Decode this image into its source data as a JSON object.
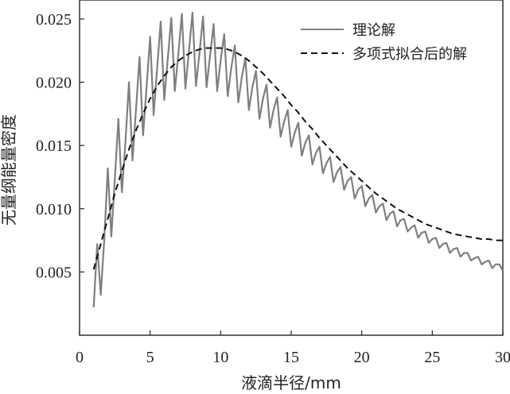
{
  "chart_data": {
    "type": "line",
    "xlabel": "液滴半径/mm",
    "ylabel": "无量纲能量密度",
    "xlim": [
      0,
      30
    ],
    "ylim": [
      0,
      0.0265
    ],
    "x_ticks": [
      0,
      5,
      10,
      15,
      20,
      25,
      30
    ],
    "x_tick_labels": [
      "0",
      "5",
      "10",
      "15",
      "20",
      "25",
      "30"
    ],
    "y_ticks": [
      0.005,
      0.01,
      0.015,
      0.02,
      0.025
    ],
    "y_tick_labels": [
      "0.005",
      "0.010",
      "0.015",
      "0.020",
      "0.025"
    ],
    "legend_position": "top-right",
    "grid": false,
    "series": [
      {
        "name": "理论解",
        "style": "solid",
        "color": "#7f7f7f",
        "x": [
          1.0,
          1.25,
          1.5,
          1.75,
          2.0,
          2.25,
          2.5,
          2.75,
          3.0,
          3.25,
          3.5,
          3.75,
          4.0,
          4.25,
          4.5,
          4.75,
          5.0,
          5.25,
          5.5,
          5.75,
          6.0,
          6.25,
          6.5,
          6.75,
          7.0,
          7.25,
          7.5,
          7.75,
          8.0,
          8.25,
          8.5,
          8.75,
          9.0,
          9.25,
          9.5,
          9.75,
          10.0,
          10.25,
          10.5,
          10.75,
          11.0,
          11.25,
          11.5,
          11.75,
          12.0,
          12.25,
          12.5,
          12.75,
          13.0,
          13.25,
          13.5,
          13.75,
          14.0,
          14.25,
          14.5,
          14.75,
          15.0,
          15.25,
          15.5,
          15.75,
          16.0,
          16.25,
          16.5,
          16.75,
          17.0,
          17.25,
          17.5,
          17.75,
          18.0,
          18.25,
          18.5,
          18.75,
          19.0,
          19.25,
          19.5,
          19.75,
          20.0,
          20.25,
          20.5,
          20.75,
          21.0,
          21.25,
          21.5,
          21.75,
          22.0,
          22.25,
          22.5,
          22.75,
          23.0,
          23.25,
          23.5,
          23.75,
          24.0,
          24.25,
          24.5,
          24.75,
          25.0,
          25.25,
          25.5,
          25.75,
          26.0,
          26.25,
          26.5,
          26.75,
          27.0,
          27.25,
          27.5,
          27.75,
          28.0,
          28.25,
          28.5,
          28.75,
          29.0,
          29.25,
          29.5,
          29.75,
          30.0
        ],
        "y": [
          0.0022,
          0.0072,
          0.0032,
          0.0075,
          0.0132,
          0.0078,
          0.0123,
          0.0171,
          0.0113,
          0.0152,
          0.02,
          0.0138,
          0.0178,
          0.022,
          0.0158,
          0.0196,
          0.0236,
          0.0174,
          0.0211,
          0.0248,
          0.0186,
          0.0218,
          0.0251,
          0.0193,
          0.0222,
          0.0254,
          0.0195,
          0.0224,
          0.0255,
          0.0197,
          0.0223,
          0.0252,
          0.0196,
          0.0221,
          0.0246,
          0.0193,
          0.0217,
          0.0238,
          0.0189,
          0.0211,
          0.0229,
          0.0184,
          0.0204,
          0.0219,
          0.0178,
          0.0196,
          0.0209,
          0.0171,
          0.0187,
          0.0198,
          0.0164,
          0.0178,
          0.0188,
          0.0157,
          0.0169,
          0.0178,
          0.0149,
          0.016,
          0.0168,
          0.0142,
          0.0152,
          0.0158,
          0.0135,
          0.0144,
          0.0149,
          0.0128,
          0.0136,
          0.0141,
          0.0121,
          0.0129,
          0.0133,
          0.0115,
          0.0122,
          0.0125,
          0.0108,
          0.0115,
          0.0118,
          0.0102,
          0.0108,
          0.0111,
          0.0097,
          0.0102,
          0.0104,
          0.0091,
          0.0096,
          0.0098,
          0.0086,
          0.0091,
          0.0092,
          0.0082,
          0.0085,
          0.0087,
          0.0077,
          0.0081,
          0.0082,
          0.0073,
          0.0076,
          0.0077,
          0.0069,
          0.0072,
          0.0073,
          0.0065,
          0.0068,
          0.0069,
          0.0062,
          0.0065,
          0.0065,
          0.0059,
          0.0061,
          0.0062,
          0.0056,
          0.0058,
          0.0059,
          0.0053,
          0.0056,
          0.0056,
          0.0051
        ]
      },
      {
        "name": "多项式拟合后的解",
        "style": "dashed",
        "color": "#111111",
        "x": [
          1.0,
          1.5,
          2.0,
          2.5,
          3.0,
          3.5,
          4.0,
          4.5,
          5.0,
          5.5,
          6.0,
          6.5,
          7.0,
          7.5,
          8.0,
          8.5,
          9.0,
          9.5,
          10.0,
          10.5,
          11.0,
          11.5,
          12.0,
          12.5,
          13.0,
          13.5,
          14.0,
          14.5,
          15.0,
          15.5,
          16.0,
          16.5,
          17.0,
          17.5,
          18.0,
          18.5,
          19.0,
          19.5,
          20.0,
          20.5,
          21.0,
          21.5,
          22.0,
          22.5,
          23.0,
          23.5,
          24.0,
          24.5,
          25.0,
          25.5,
          26.0,
          26.5,
          27.0,
          27.5,
          28.0,
          28.5,
          29.0,
          29.5,
          30.0
        ],
        "y": [
          0.0052,
          0.0072,
          0.0092,
          0.0112,
          0.013,
          0.0147,
          0.0162,
          0.0175,
          0.0187,
          0.0197,
          0.0205,
          0.0212,
          0.0217,
          0.0221,
          0.0224,
          0.0226,
          0.0227,
          0.0227,
          0.0227,
          0.0226,
          0.0224,
          0.0221,
          0.0217,
          0.0212,
          0.0207,
          0.0201,
          0.0195,
          0.0189,
          0.0182,
          0.0176,
          0.0169,
          0.0163,
          0.0156,
          0.015,
          0.0144,
          0.0138,
          0.0132,
          0.0127,
          0.0122,
          0.0117,
          0.0112,
          0.0108,
          0.0104,
          0.01,
          0.0097,
          0.0094,
          0.0091,
          0.0088,
          0.0086,
          0.0084,
          0.0082,
          0.008,
          0.0079,
          0.0078,
          0.0077,
          0.0076,
          0.0076,
          0.0075,
          0.0075
        ]
      }
    ]
  }
}
